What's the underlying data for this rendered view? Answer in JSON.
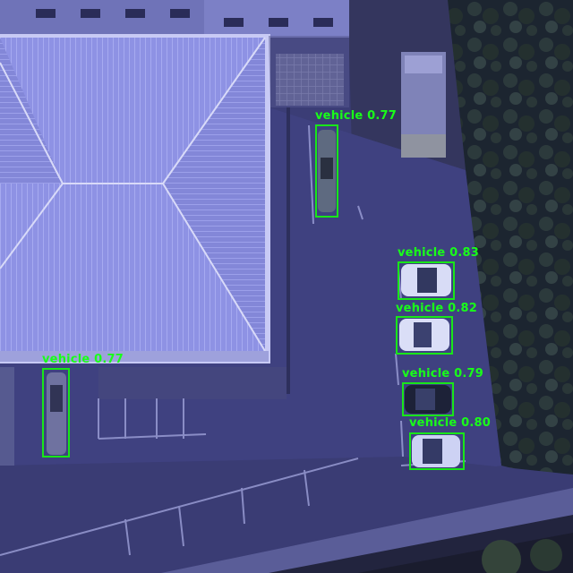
{
  "detections": [
    {
      "label": "vehicle",
      "score": "0.77"
    },
    {
      "label": "vehicle",
      "score": "0.83"
    },
    {
      "label": "vehicle",
      "score": "0.82"
    },
    {
      "label": "vehicle",
      "score": "0.79"
    },
    {
      "label": "vehicle",
      "score": "0.80"
    },
    {
      "label": "vehicle",
      "score": "0.77"
    }
  ],
  "colors": {
    "box": "#19e619",
    "roof": "#8f93e6",
    "ground": "#3d3f78",
    "trees": "#1f2a2e"
  }
}
